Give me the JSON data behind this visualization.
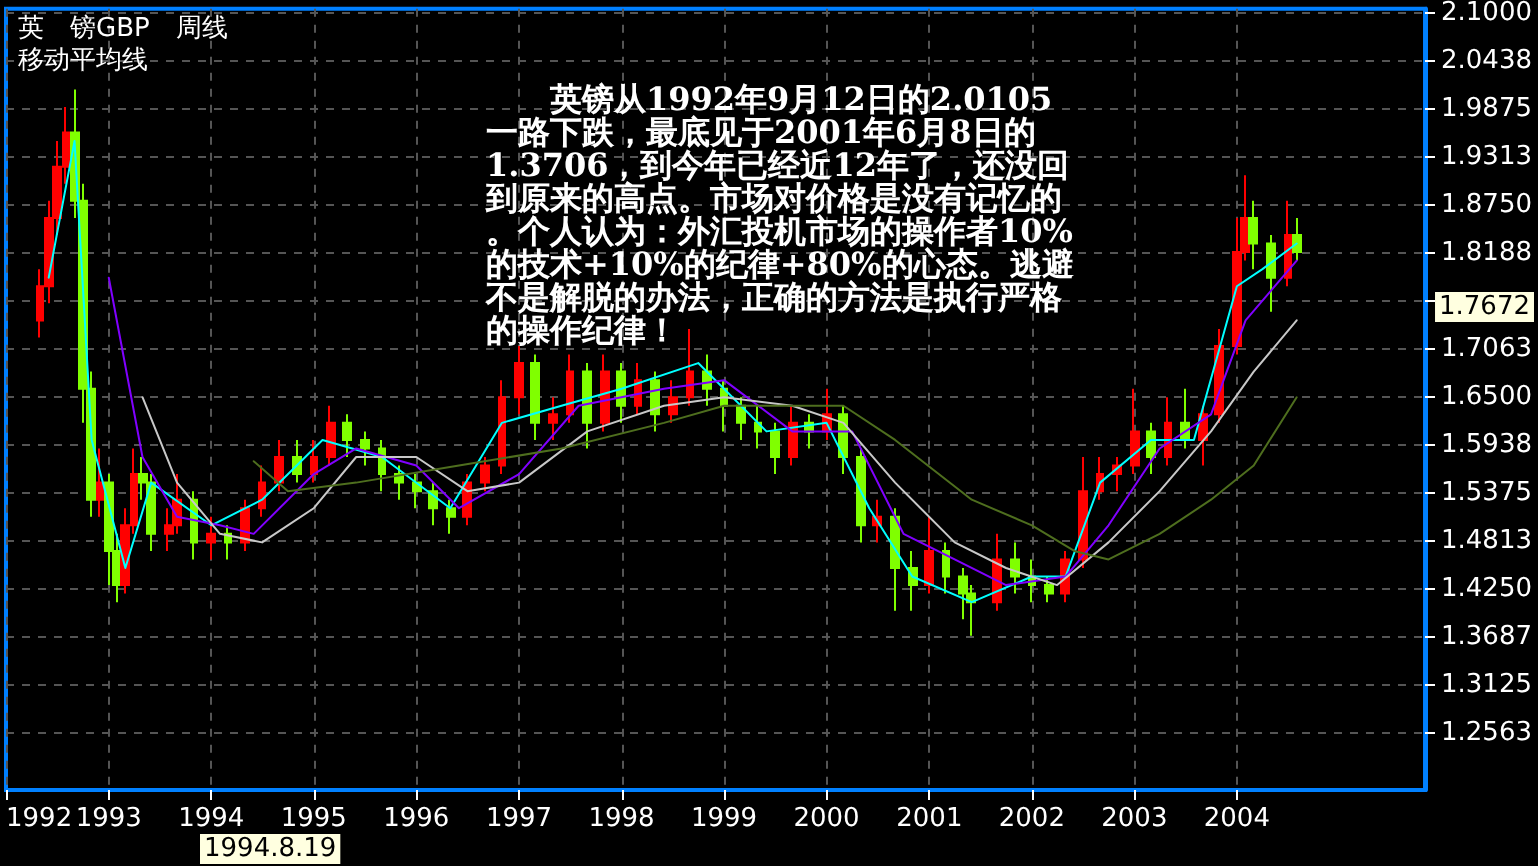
{
  "chart_data": {
    "type": "candlestick",
    "title": "英　镑GBP　周线",
    "subtitle": "移动平均线",
    "annotations": [
      "　　英镑从1992年9月12日的2.0105一路下跌，最底见于2001年6月8日的1.3706，到今年已经近12年了，还没回到原来的高点。市场对价格是没有记忆的。个人认为：外汇投机市场的操作者10%的技术+10%的纪律+80%的心态。逃避不是解脱的办法，正确的方法是执行严格的操作纪律！",
      "1.7672",
      "1994.8.19"
    ],
    "xlim": [
      "1992-01",
      "2005-11"
    ],
    "xticks": [
      "1992",
      "1993",
      "1994",
      "1995",
      "1996",
      "1997",
      "1998",
      "1999",
      "2000",
      "2001",
      "2002",
      "2003",
      "2004"
    ],
    "ylim": [
      1.19,
      2.105
    ],
    "yticks": [
      {
        "value": 1.25625,
        "label": "1.2563"
      },
      {
        "value": 1.3125,
        "label": "1.3125"
      },
      {
        "value": 1.36875,
        "label": "1.3687"
      },
      {
        "value": 1.425,
        "label": "1.4250"
      },
      {
        "value": 1.48125,
        "label": "1.4813"
      },
      {
        "value": 1.5375,
        "label": "1.5375"
      },
      {
        "value": 1.59375,
        "label": "1.5938"
      },
      {
        "value": 1.65,
        "label": "1.6500"
      },
      {
        "value": 1.70625,
        "label": "1.7063"
      },
      {
        "value": 1.7625,
        "label": null
      },
      {
        "value": 1.81875,
        "label": "1.8188"
      },
      {
        "value": 1.875,
        "label": "1.8750"
      },
      {
        "value": 1.93125,
        "label": "1.9313"
      },
      {
        "value": 1.9875,
        "label": "1.9875"
      },
      {
        "value": 2.04375,
        "label": "2.0438"
      },
      {
        "value": 2.1,
        "label": "2.1000"
      }
    ],
    "grid": true,
    "series": [
      {
        "x": [
          "1992-05",
          "1992-06",
          "1992-07",
          "1992-08",
          "1992-09",
          "1992-10",
          "1992-11",
          "1992-12",
          "1993-01",
          "1993-02",
          "1993-03",
          "1993-04",
          "1993-05",
          "1993-06",
          "1993-08",
          "1993-09",
          "1993-11",
          "1994-01",
          "1994-03",
          "1994-05",
          "1994-07",
          "1994-09",
          "1994-11",
          "1995-01",
          "1995-03",
          "1995-05",
          "1995-07",
          "1995-09",
          "1995-11",
          "1996-01",
          "1996-03",
          "1996-05",
          "1996-07",
          "1996-09",
          "1996-11",
          "1997-01",
          "1997-03",
          "1997-05",
          "1997-07",
          "1997-09",
          "1997-11",
          "1998-01",
          "1998-03",
          "1998-05",
          "1998-07",
          "1998-09",
          "1998-11",
          "1999-01",
          "1999-03",
          "1999-05",
          "1999-07",
          "1999-09",
          "1999-11",
          "2000-01",
          "2000-03",
          "2000-05",
          "2000-07",
          "2000-09",
          "2000-11",
          "2001-01",
          "2001-03",
          "2001-05",
          "2001-06",
          "2001-09",
          "2001-11",
          "2002-01",
          "2002-03",
          "2002-05",
          "2002-07",
          "2002-09",
          "2002-11",
          "2003-01",
          "2003-03",
          "2003-05",
          "2003-07",
          "2003-09",
          "2003-11",
          "2004-01",
          "2004-02",
          "2004-03",
          "2004-05",
          "2004-07",
          "2004-08"
        ],
        "ohlc": [
          [
            1.74,
            1.8,
            1.72,
            1.78
          ],
          [
            1.78,
            1.88,
            1.76,
            1.86
          ],
          [
            1.86,
            1.95,
            1.84,
            1.92
          ],
          [
            1.92,
            1.99,
            1.9,
            1.96
          ],
          [
            1.96,
            2.0105,
            1.86,
            1.88
          ],
          [
            1.88,
            1.9,
            1.62,
            1.66
          ],
          [
            1.66,
            1.68,
            1.51,
            1.53
          ],
          [
            1.53,
            1.59,
            1.51,
            1.55
          ],
          [
            1.55,
            1.56,
            1.43,
            1.47
          ],
          [
            1.47,
            1.49,
            1.41,
            1.43
          ],
          [
            1.43,
            1.52,
            1.42,
            1.5
          ],
          [
            1.5,
            1.59,
            1.49,
            1.56
          ],
          [
            1.56,
            1.58,
            1.53,
            1.55
          ],
          [
            1.55,
            1.56,
            1.47,
            1.49
          ],
          [
            1.49,
            1.52,
            1.47,
            1.5
          ],
          [
            1.5,
            1.56,
            1.49,
            1.53
          ],
          [
            1.53,
            1.54,
            1.46,
            1.48
          ],
          [
            1.48,
            1.51,
            1.46,
            1.49
          ],
          [
            1.49,
            1.5,
            1.46,
            1.48
          ],
          [
            1.48,
            1.53,
            1.47,
            1.52
          ],
          [
            1.52,
            1.57,
            1.51,
            1.55
          ],
          [
            1.55,
            1.6,
            1.54,
            1.58
          ],
          [
            1.58,
            1.6,
            1.55,
            1.56
          ],
          [
            1.56,
            1.6,
            1.55,
            1.58
          ],
          [
            1.58,
            1.64,
            1.57,
            1.62
          ],
          [
            1.62,
            1.63,
            1.58,
            1.6
          ],
          [
            1.6,
            1.61,
            1.57,
            1.59
          ],
          [
            1.59,
            1.6,
            1.54,
            1.56
          ],
          [
            1.56,
            1.57,
            1.53,
            1.55
          ],
          [
            1.55,
            1.56,
            1.52,
            1.54
          ],
          [
            1.54,
            1.55,
            1.5,
            1.52
          ],
          [
            1.52,
            1.53,
            1.49,
            1.51
          ],
          [
            1.51,
            1.56,
            1.5,
            1.55
          ],
          [
            1.55,
            1.58,
            1.54,
            1.57
          ],
          [
            1.57,
            1.67,
            1.56,
            1.65
          ],
          [
            1.65,
            1.71,
            1.63,
            1.69
          ],
          [
            1.69,
            1.7,
            1.6,
            1.62
          ],
          [
            1.62,
            1.65,
            1.6,
            1.63
          ],
          [
            1.63,
            1.7,
            1.62,
            1.68
          ],
          [
            1.68,
            1.69,
            1.59,
            1.62
          ],
          [
            1.62,
            1.7,
            1.61,
            1.68
          ],
          [
            1.68,
            1.69,
            1.62,
            1.64
          ],
          [
            1.64,
            1.69,
            1.63,
            1.67
          ],
          [
            1.67,
            1.68,
            1.61,
            1.63
          ],
          [
            1.63,
            1.67,
            1.62,
            1.65
          ],
          [
            1.65,
            1.73,
            1.64,
            1.68
          ],
          [
            1.68,
            1.7,
            1.64,
            1.66
          ],
          [
            1.66,
            1.67,
            1.61,
            1.64
          ],
          [
            1.64,
            1.65,
            1.6,
            1.62
          ],
          [
            1.62,
            1.64,
            1.59,
            1.61
          ],
          [
            1.61,
            1.62,
            1.56,
            1.58
          ],
          [
            1.58,
            1.64,
            1.57,
            1.62
          ],
          [
            1.62,
            1.63,
            1.59,
            1.61
          ],
          [
            1.61,
            1.66,
            1.6,
            1.63
          ],
          [
            1.63,
            1.64,
            1.56,
            1.58
          ],
          [
            1.58,
            1.59,
            1.48,
            1.5
          ],
          [
            1.5,
            1.53,
            1.48,
            1.51
          ],
          [
            1.51,
            1.52,
            1.4,
            1.45
          ],
          [
            1.45,
            1.47,
            1.4,
            1.43
          ],
          [
            1.43,
            1.51,
            1.42,
            1.47
          ],
          [
            1.47,
            1.48,
            1.42,
            1.44
          ],
          [
            1.44,
            1.45,
            1.39,
            1.42
          ],
          [
            1.42,
            1.43,
            1.3706,
            1.41
          ],
          [
            1.41,
            1.49,
            1.4,
            1.46
          ],
          [
            1.46,
            1.48,
            1.42,
            1.44
          ],
          [
            1.44,
            1.46,
            1.41,
            1.43
          ],
          [
            1.43,
            1.44,
            1.41,
            1.42
          ],
          [
            1.42,
            1.47,
            1.41,
            1.46
          ],
          [
            1.46,
            1.58,
            1.45,
            1.54
          ],
          [
            1.54,
            1.58,
            1.53,
            1.56
          ],
          [
            1.56,
            1.58,
            1.54,
            1.57
          ],
          [
            1.57,
            1.66,
            1.56,
            1.61
          ],
          [
            1.61,
            1.62,
            1.56,
            1.58
          ],
          [
            1.58,
            1.65,
            1.57,
            1.62
          ],
          [
            1.62,
            1.66,
            1.59,
            1.6
          ],
          [
            1.6,
            1.64,
            1.57,
            1.63
          ],
          [
            1.63,
            1.73,
            1.62,
            1.71
          ],
          [
            1.71,
            1.86,
            1.7,
            1.82
          ],
          [
            1.82,
            1.91,
            1.81,
            1.86
          ],
          [
            1.86,
            1.88,
            1.8,
            1.83
          ],
          [
            1.83,
            1.84,
            1.75,
            1.79
          ],
          [
            1.79,
            1.88,
            1.78,
            1.84
          ],
          [
            1.84,
            1.86,
            1.81,
            1.82
          ]
        ],
        "colors": [
          "#ff0000",
          "#ff0000",
          "#ff0000",
          "#ff0000",
          "#80ff00",
          "#80ff00",
          "#80ff00",
          "#ff0000",
          "#80ff00",
          "#80ff00",
          "#ff0000",
          "#ff0000",
          "#80ff00",
          "#80ff00",
          "#ff0000",
          "#ff0000",
          "#80ff00",
          "#ff0000",
          "#80ff00",
          "#ff0000",
          "#ff0000",
          "#ff0000",
          "#80ff00",
          "#ff0000",
          "#ff0000",
          "#80ff00",
          "#80ff00",
          "#80ff00",
          "#80ff00",
          "#80ff00",
          "#80ff00",
          "#80ff00",
          "#ff0000",
          "#ff0000",
          "#ff0000",
          "#ff0000",
          "#80ff00",
          "#ff0000",
          "#ff0000",
          "#80ff00",
          "#ff0000",
          "#80ff00",
          "#ff0000",
          "#80ff00",
          "#ff0000",
          "#ff0000",
          "#80ff00",
          "#80ff00",
          "#80ff00",
          "#80ff00",
          "#80ff00",
          "#ff0000",
          "#80ff00",
          "#ff0000",
          "#80ff00",
          "#80ff00",
          "#ff0000",
          "#80ff00",
          "#80ff00",
          "#ff0000",
          "#80ff00",
          "#80ff00",
          "#80ff00",
          "#ff0000",
          "#80ff00",
          "#80ff00",
          "#80ff00",
          "#ff0000",
          "#ff0000",
          "#ff0000",
          "#ff0000",
          "#ff0000",
          "#80ff00",
          "#ff0000",
          "#80ff00",
          "#ff0000",
          "#ff0000",
          "#ff0000",
          "#ff0000",
          "#80ff00",
          "#80ff00",
          "#ff0000",
          "#80ff00"
        ]
      },
      {
        "type": "line",
        "color": "#00ffff",
        "x": [
          "1992-06",
          "1992-09",
          "1992-11",
          "1993-03",
          "1993-06",
          "1994-01",
          "1994-07",
          "1995-02",
          "1995-09",
          "1996-05",
          "1996-11",
          "1997-06",
          "1998-01",
          "1998-10",
          "1999-06",
          "2000-01",
          "2000-06",
          "2000-11",
          "2001-06",
          "2002-01",
          "2002-05",
          "2002-09",
          "2003-03",
          "2003-08",
          "2004-01",
          "2004-04",
          "2004-08"
        ],
        "values": [
          1.79,
          1.95,
          1.6,
          1.45,
          1.55,
          1.5,
          1.53,
          1.6,
          1.58,
          1.52,
          1.62,
          1.64,
          1.66,
          1.69,
          1.61,
          1.62,
          1.52,
          1.44,
          1.41,
          1.44,
          1.44,
          1.55,
          1.6,
          1.6,
          1.78,
          1.8,
          1.83
        ]
      },
      {
        "type": "line",
        "color": "#8000ff",
        "x": [
          "1993-01",
          "1993-05",
          "1993-09",
          "1994-02",
          "1994-06",
          "1995-01",
          "1995-06",
          "1996-01",
          "1996-06",
          "1997-01",
          "1997-08",
          "1998-06",
          "1999-01",
          "1999-09",
          "2000-04",
          "2000-10",
          "2001-04",
          "2001-10",
          "2002-05",
          "2002-10",
          "2003-04",
          "2003-10",
          "2004-02",
          "2004-08"
        ],
        "values": [
          1.79,
          1.58,
          1.51,
          1.5,
          1.49,
          1.56,
          1.59,
          1.57,
          1.52,
          1.56,
          1.64,
          1.66,
          1.67,
          1.61,
          1.61,
          1.49,
          1.46,
          1.43,
          1.44,
          1.5,
          1.59,
          1.63,
          1.74,
          1.81
        ]
      },
      {
        "type": "line",
        "color": "#c8c8c8",
        "x": [
          "1993-05",
          "1993-09",
          "1994-02",
          "1994-07",
          "1995-01",
          "1995-06",
          "1996-01",
          "1996-07",
          "1997-01",
          "1997-09",
          "1998-06",
          "1999-01",
          "1999-09",
          "2000-03",
          "2000-09",
          "2001-04",
          "2001-10",
          "2002-04",
          "2002-10",
          "2003-04",
          "2003-10",
          "2004-03",
          "2004-08"
        ],
        "values": [
          1.65,
          1.55,
          1.49,
          1.48,
          1.52,
          1.58,
          1.58,
          1.54,
          1.55,
          1.61,
          1.64,
          1.65,
          1.64,
          1.62,
          1.55,
          1.48,
          1.45,
          1.43,
          1.48,
          1.54,
          1.61,
          1.68,
          1.74
        ]
      },
      {
        "type": "line",
        "color": "#4e6e1e",
        "x": [
          "1994-06",
          "1994-10",
          "1995-06",
          "1996-06",
          "1997-06",
          "1998-06",
          "1999-01",
          "1999-09",
          "2000-03",
          "2000-09",
          "2001-06",
          "2002-01",
          "2002-06",
          "2002-10",
          "2003-04",
          "2003-10",
          "2004-03",
          "2004-08"
        ],
        "values": [
          1.575,
          1.54,
          1.55,
          1.57,
          1.59,
          1.62,
          1.64,
          1.64,
          1.64,
          1.6,
          1.53,
          1.5,
          1.47,
          1.46,
          1.49,
          1.53,
          1.57,
          1.65
        ]
      }
    ]
  }
}
